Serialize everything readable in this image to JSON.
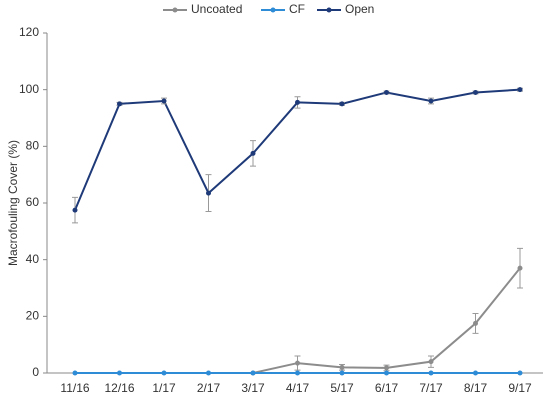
{
  "chart_data": {
    "type": "line",
    "categories": [
      "11/16",
      "12/16",
      "1/17",
      "2/17",
      "3/17",
      "4/17",
      "5/17",
      "6/17",
      "7/17",
      "8/17",
      "9/17"
    ],
    "y_label": "Macrofouling Cover (%)",
    "ylim": [
      0,
      120
    ],
    "yticks": [
      0,
      20,
      40,
      60,
      80,
      100,
      120
    ],
    "legend": "top",
    "series": [
      {
        "name": "Uncoated",
        "color": "#8c8c8c",
        "values": [
          null,
          null,
          null,
          null,
          0,
          3.5,
          2,
          1.8,
          4,
          17.5,
          37
        ],
        "errors": [
          null,
          null,
          null,
          null,
          0,
          2.5,
          1,
          1,
          2,
          3.5,
          7
        ]
      },
      {
        "name": "CF",
        "color": "#2e8bd6",
        "values": [
          0,
          0,
          0,
          0,
          0,
          0,
          0,
          0,
          0,
          0,
          0
        ],
        "errors": [
          0,
          0,
          0,
          0,
          0,
          0,
          0,
          0,
          0,
          0,
          0
        ]
      },
      {
        "name": "Open",
        "color": "#1f3a78",
        "values": [
          57.5,
          95,
          96,
          63.5,
          77.5,
          95.5,
          95,
          99,
          96,
          99,
          100
        ],
        "errors": [
          4.5,
          0.5,
          1,
          6.5,
          4.5,
          2,
          0.5,
          0.5,
          1,
          0.5,
          0.5
        ]
      }
    ]
  }
}
